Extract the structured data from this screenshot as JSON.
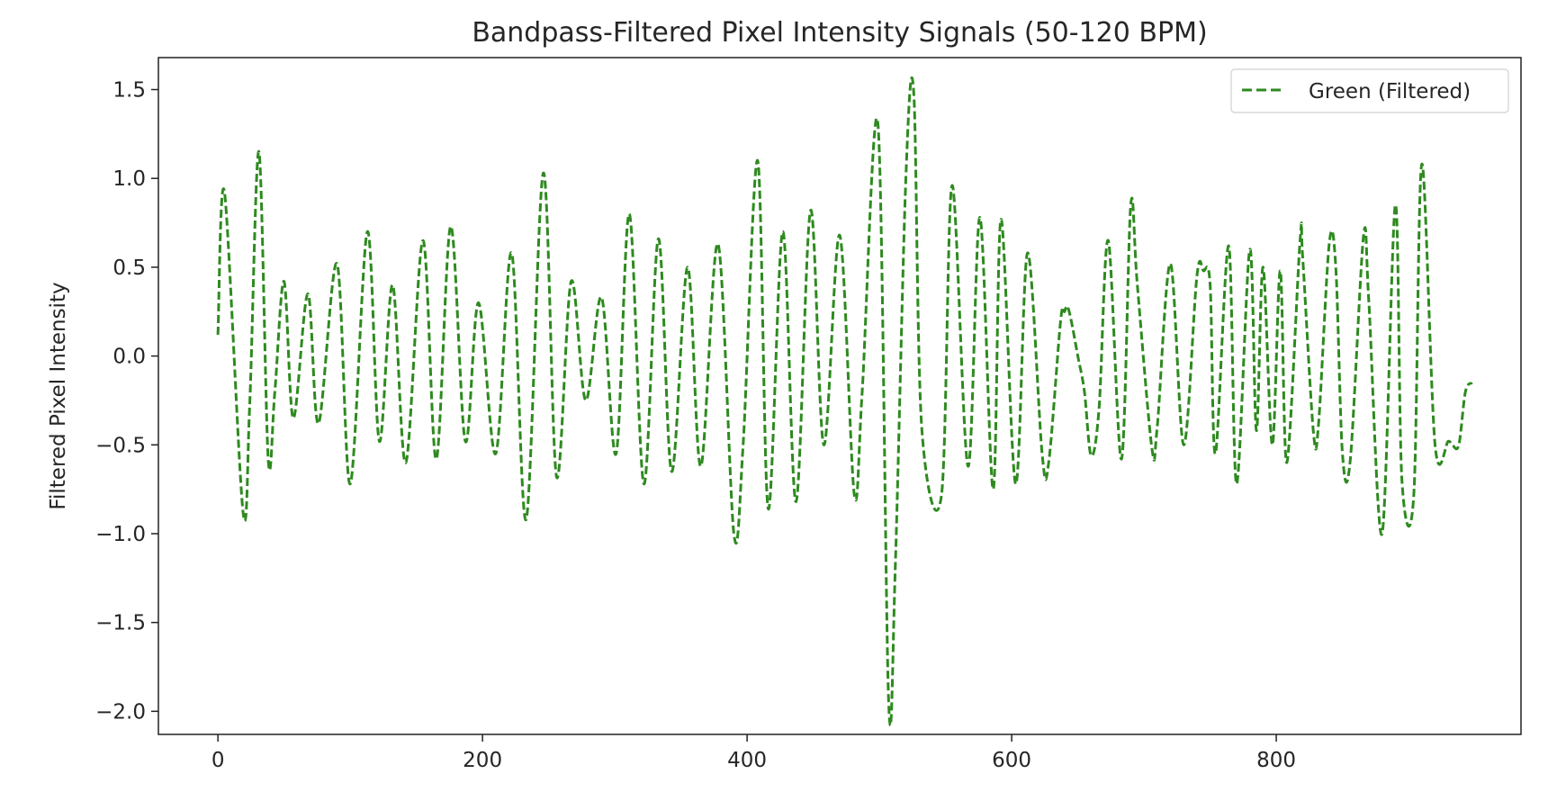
{
  "chart_data": {
    "type": "line",
    "title": "Bandpass-Filtered Pixel Intensity Signals (50-120 BPM)",
    "xlabel": "",
    "ylabel": "Filtered Pixel Intensity",
    "xlim": [
      -45,
      985
    ],
    "ylim": [
      -2.13,
      1.68
    ],
    "x_ticks": [
      0,
      200,
      400,
      600,
      800
    ],
    "x_tick_labels": [
      "0",
      "200",
      "400",
      "600",
      "800"
    ],
    "y_ticks": [
      1.5,
      1.0,
      0.5,
      0.0,
      -0.5,
      -1.0,
      -1.5,
      -2.0
    ],
    "y_tick_labels": [
      "1.5",
      "1.0",
      "0.5",
      "0.0",
      "−0.5",
      "−1.0",
      "−1.5",
      "−2.0"
    ],
    "grid": false,
    "legend": {
      "position": "top-right"
    },
    "series": [
      {
        "name": "Green (Filtered)",
        "color": "#2e8a1f",
        "line_style": "dashed",
        "x": [
          0,
          5,
          19,
          24,
          31,
          38,
          43,
          50,
          57,
          68,
          76,
          90,
          100,
          113,
          122,
          132,
          142,
          155,
          165,
          176,
          187,
          197,
          210,
          222,
          233,
          246,
          256,
          267,
          278,
          290,
          301,
          311,
          322,
          333,
          343,
          355,
          365,
          378,
          390,
          397,
          408,
          416,
          427,
          437,
          448,
          458,
          470,
          481,
          487,
          499,
          507,
          512,
          520,
          526,
          532,
          547,
          555,
          567,
          576,
          586,
          592,
          603,
          612,
          623,
          628,
          637,
          640,
          642,
          645,
          650,
          655,
          660,
          666,
          673,
          683,
          690,
          695,
          706,
          710,
          720,
          730,
          740,
          745,
          750,
          754,
          764,
          770,
          780,
          785,
          790,
          797,
          803,
          808,
          818,
          820,
          828,
          832,
          840,
          845,
          850,
          856,
          866,
          870,
          880,
          890,
          895,
          904,
          910,
          920,
          930,
          933,
          938,
          943,
          948
        ],
        "y": [
          0.12,
          0.92,
          -0.88,
          -0.28,
          1.15,
          -0.58,
          -0.2,
          0.42,
          -0.35,
          0.35,
          -0.38,
          0.52,
          -0.72,
          0.7,
          -0.48,
          0.4,
          -0.6,
          0.65,
          -0.58,
          0.73,
          -0.48,
          0.3,
          -0.55,
          0.58,
          -0.92,
          1.03,
          -0.68,
          0.42,
          -0.25,
          0.33,
          -0.55,
          0.8,
          -0.72,
          0.66,
          -0.65,
          0.5,
          -0.62,
          0.63,
          -1.0,
          -0.5,
          1.1,
          -0.86,
          0.7,
          -0.82,
          0.82,
          -0.5,
          0.68,
          -0.78,
          -0.2,
          1.3,
          -1.95,
          -1.2,
          1.0,
          1.48,
          -0.4,
          -0.78,
          0.96,
          -0.62,
          0.78,
          -0.75,
          0.77,
          -0.72,
          0.58,
          -0.55,
          -0.6,
          0.2,
          0.25,
          0.28,
          0.2,
          0.0,
          -0.2,
          -0.56,
          -0.3,
          0.65,
          -0.58,
          0.85,
          0.4,
          -0.52,
          -0.4,
          0.52,
          -0.5,
          0.45,
          0.48,
          0.4,
          -0.55,
          0.62,
          -0.72,
          0.6,
          -0.42,
          0.5,
          -0.5,
          0.48,
          -0.6,
          0.65,
          0.55,
          -0.42,
          -0.38,
          0.63,
          0.5,
          -0.55,
          -0.58,
          0.68,
          0.3,
          -1.0,
          0.85,
          -0.7,
          -0.78,
          1.08,
          -0.5,
          -0.48,
          -0.5,
          -0.5,
          -0.2,
          -0.15
        ]
      }
    ]
  }
}
